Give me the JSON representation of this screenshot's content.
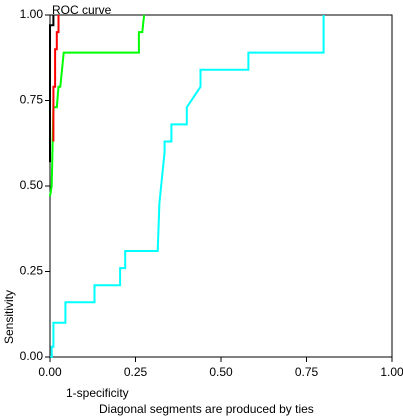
{
  "chart_data": {
    "type": "line",
    "title": "ROC curve",
    "xlabel": "1-specificity",
    "ylabel": "Sensitivity",
    "footnote": "Diagonal segments are produced by ties",
    "xlim": [
      0,
      1
    ],
    "ylim": [
      0,
      1
    ],
    "x_ticks": [
      "0.00",
      "0.25",
      "0.50",
      "0.75",
      "1.00"
    ],
    "y_ticks": [
      "0.00",
      "0.25",
      "0.50",
      "0.75",
      "1.00"
    ],
    "x_tick_values": [
      0,
      0.25,
      0.5,
      0.75,
      1
    ],
    "y_tick_values": [
      0,
      0.25,
      0.5,
      0.75,
      1
    ],
    "grid": false,
    "legend": "none",
    "series": [
      {
        "color": "#00ffff",
        "points": [
          [
            0,
            0
          ],
          [
            0.005,
            0
          ],
          [
            0.005,
            0.03
          ],
          [
            0.01,
            0.03
          ],
          [
            0.01,
            0.1
          ],
          [
            0.045,
            0.1
          ],
          [
            0.045,
            0.16
          ],
          [
            0.13,
            0.16
          ],
          [
            0.13,
            0.21
          ],
          [
            0.205,
            0.21
          ],
          [
            0.205,
            0.26
          ],
          [
            0.22,
            0.26
          ],
          [
            0.22,
            0.31
          ],
          [
            0.315,
            0.31
          ],
          [
            0.32,
            0.45
          ],
          [
            0.335,
            0.6
          ],
          [
            0.335,
            0.63
          ],
          [
            0.355,
            0.63
          ],
          [
            0.355,
            0.68
          ],
          [
            0.4,
            0.68
          ],
          [
            0.4,
            0.73
          ],
          [
            0.44,
            0.79
          ],
          [
            0.44,
            0.84
          ],
          [
            0.58,
            0.84
          ],
          [
            0.58,
            0.89
          ],
          [
            0.8,
            0.89
          ],
          [
            0.8,
            1
          ]
        ]
      },
      {
        "color": "#00ff00",
        "points": [
          [
            0,
            0.47
          ],
          [
            0.005,
            0.5
          ],
          [
            0.01,
            0.73
          ],
          [
            0.02,
            0.73
          ],
          [
            0.025,
            0.79
          ],
          [
            0.03,
            0.79
          ],
          [
            0.035,
            0.84
          ],
          [
            0.04,
            0.89
          ],
          [
            0.26,
            0.89
          ],
          [
            0.26,
            0.95
          ],
          [
            0.27,
            0.95
          ],
          [
            0.275,
            1
          ]
        ]
      },
      {
        "color": "#ff0000",
        "points": [
          [
            0.01,
            0.63
          ],
          [
            0.01,
            0.79
          ],
          [
            0.015,
            0.79
          ],
          [
            0.015,
            0.9
          ],
          [
            0.02,
            0.9
          ],
          [
            0.02,
            0.95
          ],
          [
            0.025,
            0.95
          ],
          [
            0.025,
            1
          ]
        ]
      },
      {
        "color": "#000000",
        "points": [
          [
            0,
            0.57
          ],
          [
            0,
            0.97
          ],
          [
            0.01,
            0.97
          ],
          [
            0.01,
            1
          ]
        ]
      }
    ]
  }
}
